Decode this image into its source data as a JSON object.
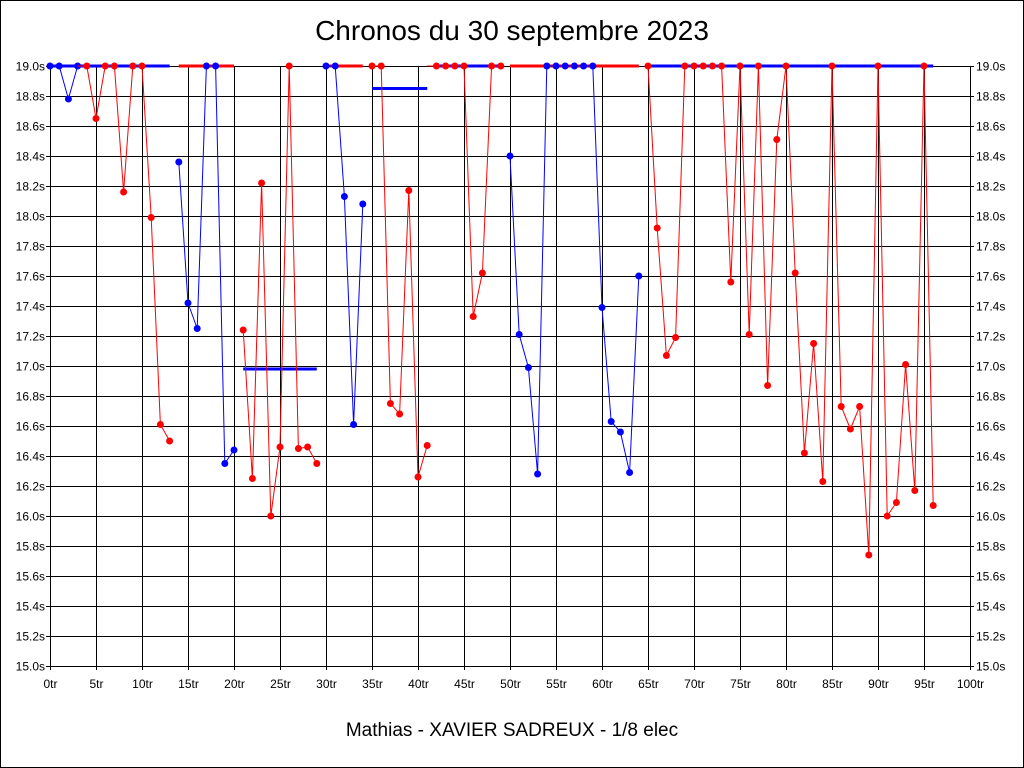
{
  "chart_data": {
    "type": "line",
    "title": "Chronos du 30 septembre 2023",
    "subtitle": "Mathias - XAVIER SADREUX - 1/8 elec",
    "xlabel": "",
    "ylabel": "",
    "xlim": [
      0,
      100
    ],
    "ylim": [
      15.0,
      19.0
    ],
    "grid": true,
    "x_ticks": [
      "0tr",
      "5tr",
      "10tr",
      "15tr",
      "20tr",
      "25tr",
      "30tr",
      "35tr",
      "40tr",
      "45tr",
      "50tr",
      "55tr",
      "60tr",
      "65tr",
      "70tr",
      "75tr",
      "80tr",
      "85tr",
      "90tr",
      "95tr",
      "100tr"
    ],
    "y_ticks": [
      "15.0s",
      "15.2s",
      "15.4s",
      "15.6s",
      "15.8s",
      "16.0s",
      "16.2s",
      "16.4s",
      "16.6s",
      "16.8s",
      "17.0s",
      "17.2s",
      "17.4s",
      "17.6s",
      "17.8s",
      "18.0s",
      "18.2s",
      "18.4s",
      "18.6s",
      "18.8s",
      "19.0s"
    ],
    "colors": {
      "red": "#ff0000",
      "blue": "#0000ff",
      "axis": "#000000",
      "grid": "#000000"
    },
    "series": [
      {
        "color": "blue",
        "x": [
          0,
          1,
          2,
          3
        ],
        "y": [
          19.0,
          19.0,
          18.78,
          19.0
        ],
        "clip_start": null
      },
      {
        "color": "red",
        "x": [
          4,
          5,
          6,
          7,
          8,
          9,
          10,
          11,
          12,
          13
        ],
        "y": [
          19.0,
          18.65,
          19.0,
          19.0,
          18.16,
          19.0,
          19.0,
          17.99,
          16.61,
          16.5
        ],
        "clip_start": 19.0
      },
      {
        "color": "blue",
        "x": [
          14,
          15,
          16,
          17,
          18,
          19,
          20
        ],
        "y": [
          18.36,
          17.42,
          17.25,
          19.0,
          19.0,
          16.35,
          16.44
        ],
        "clip_start": null
      },
      {
        "color": "red",
        "x": [
          21,
          22,
          23,
          24,
          25,
          26,
          27,
          28,
          29
        ],
        "y": [
          17.24,
          16.25,
          18.22,
          16.0,
          16.46,
          19.0,
          16.45,
          16.46,
          16.35
        ],
        "clip_start": null
      },
      {
        "color": "blue",
        "x": [
          30,
          31,
          32,
          33,
          34
        ],
        "y": [
          19.0,
          19.0,
          18.13,
          16.61,
          18.08
        ],
        "clip_start": null
      },
      {
        "color": "red",
        "x": [
          35,
          36,
          37,
          38,
          39,
          40,
          41
        ],
        "y": [
          19.0,
          19.0,
          16.75,
          16.68,
          18.17,
          16.26,
          16.47
        ],
        "clip_start": null
      },
      {
        "color": "red",
        "x": [
          42,
          43,
          44,
          45,
          46,
          47,
          48,
          49
        ],
        "y": [
          19.0,
          19.0,
          19.0,
          19.0,
          17.33,
          17.62,
          19.0,
          19.0
        ],
        "clip_start": 19.0
      },
      {
        "color": "blue",
        "x": [
          50,
          51,
          52,
          53,
          54,
          55,
          56,
          57,
          58,
          59,
          60,
          61,
          62,
          63,
          64
        ],
        "y": [
          18.4,
          17.21,
          16.99,
          16.28,
          19.0,
          19.0,
          19.0,
          19.0,
          19.0,
          19.0,
          17.39,
          16.63,
          16.56,
          16.29,
          17.6
        ],
        "clip_start": null
      },
      {
        "color": "red",
        "x": [
          65,
          66,
          67,
          68,
          69,
          70,
          71,
          72,
          73,
          74,
          75,
          76,
          77,
          78,
          79,
          80,
          81,
          82,
          83,
          84,
          85,
          86,
          87,
          88,
          89,
          90,
          91,
          92,
          93,
          94,
          95,
          96
        ],
        "y": [
          19.0,
          17.92,
          17.07,
          17.19,
          19.0,
          19.0,
          19.0,
          19.0,
          19.0,
          17.56,
          19.0,
          17.21,
          19.0,
          16.87,
          18.51,
          19.0,
          17.62,
          16.42,
          17.15,
          16.23,
          19.0,
          16.73,
          16.58,
          16.73,
          15.74,
          19.0,
          16.0,
          16.09,
          17.01,
          16.17,
          19.0,
          16.07
        ],
        "clip_start": null
      }
    ],
    "average_lines": [
      {
        "color": "red",
        "x_start": 0,
        "x_end": 13,
        "y": 19.0
      },
      {
        "color": "blue",
        "x_start": 0,
        "x_end": 13,
        "y": 19.0
      },
      {
        "color": "red",
        "x_start": 14,
        "x_end": 20,
        "y": 19.0
      },
      {
        "color": "blue",
        "x_start": 21,
        "x_end": 29,
        "y": 16.98
      },
      {
        "color": "red",
        "x_start": 30,
        "x_end": 34,
        "y": 19.0
      },
      {
        "color": "blue",
        "x_start": 35,
        "x_end": 41,
        "y": 18.85
      },
      {
        "color": "blue",
        "x_start": 42,
        "x_end": 49,
        "y": 19.0
      },
      {
        "color": "red",
        "x_start": 50,
        "x_end": 64,
        "y": 19.0
      },
      {
        "color": "blue",
        "x_start": 65,
        "x_end": 96,
        "y": 19.0
      }
    ]
  }
}
